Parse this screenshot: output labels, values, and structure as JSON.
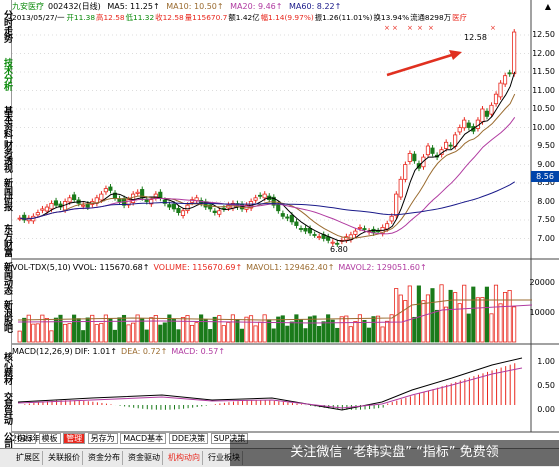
{
  "stock": {
    "name": "九安医疗",
    "code": "002432",
    "period": "(日线)"
  },
  "ma": {
    "ma5": "MA5: 11.25↑",
    "ma10": "MA10: 10.50↑",
    "ma20": "MA20: 9.46↑",
    "ma60": "MA60: 8.22↑"
  },
  "quote_line": {
    "date": "2013/05/27/一",
    "open": "开11.38",
    "high": "高12.58",
    "low": "低11.32",
    "close": "收12.58",
    "vol": "量115670.7",
    "amount": "额1.42亿",
    "pct": "幅1.14(9.97%)",
    "amp": "振1.26(11.01%)",
    "turnover": "换13.94%",
    "float": "流通8298万",
    "mark": "医疗"
  },
  "price_axis": [
    "12.50",
    "12.00",
    "11.50",
    "11.00",
    "10.50",
    "10.00",
    "9.50",
    "9.00",
    "8.50",
    "8.00",
    "7.50",
    "7.00"
  ],
  "current_price": "8.56",
  "annotations": {
    "high_label": "12.58",
    "low_label": "6.80"
  },
  "volume_header": {
    "label": "VOL-TDX(5,10)",
    "vvol": "VVOL: 115670.68↑",
    "volume": "VOLUME: 115670.69↑",
    "mavol1": "MAVOL1: 129462.40↑",
    "mavol2": "MAVOL2: 129051.60↑"
  },
  "volume_axis": [
    "20000",
    "10000"
  ],
  "macd_header": {
    "label": "MACD(12,26,9)",
    "dif": "DIF: 1.01↑",
    "dea": "DEA: 0.72↑",
    "macd": "MACD: 0.57↑"
  },
  "macd_axis": [
    "1.00",
    "0.50",
    "0.00"
  ],
  "left_tabs": [
    "分时走势",
    "技术分析",
    "基本资料",
    "财务透视",
    "新闻研报",
    "东方财富",
    "新闻动态",
    "新浪股吧",
    "核心题材",
    "交易异动",
    "公司"
  ],
  "bottom_buttons": [
    "扩展区",
    "关联报价",
    "资金分布",
    "资金驱动",
    "机构动向",
    "行业板块"
  ],
  "top_buttons": [
    "指标",
    "模板",
    "管理",
    "另存为",
    "MACD基本",
    "DDE决策",
    "SUP决策"
  ],
  "year_label": "2013年",
  "watermark": "关注微信 “老韩实盘” “指标” 免费领",
  "colors": {
    "up": "#e8281e",
    "down": "#1a7a1a",
    "ma5": "#000000",
    "ma10": "#9a6b2f",
    "ma20": "#b03aa0",
    "ma60": "#1a1a8a",
    "arrow": "#e03020"
  }
}
